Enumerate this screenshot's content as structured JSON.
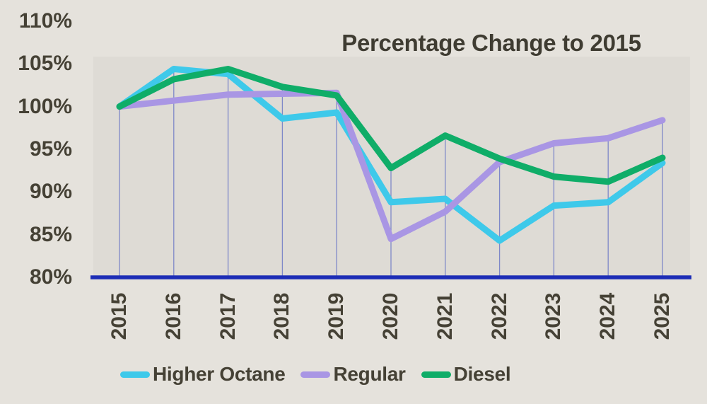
{
  "title": "Percentage Change to 2015",
  "colors": {
    "background": "#e5e2dc",
    "plot_background": "#dedbd5",
    "axis_line": "#1d2db6",
    "dropline": "#7e88c8",
    "text": "#454135",
    "higher_octane": "#3ec9ea",
    "regular": "#a996e4",
    "diesel": "#0fad68"
  },
  "y_axis": {
    "tick_labels": [
      "110%",
      "105%",
      "100%",
      "95%",
      "90%",
      "85%",
      "80%"
    ]
  },
  "x_axis": {
    "tick_labels": [
      "2015",
      "2016",
      "2017",
      "2018",
      "2019",
      "2020",
      "2021",
      "2022",
      "2023",
      "2024",
      "2025"
    ]
  },
  "legend": {
    "items": [
      {
        "label": "Higher Octane",
        "color": "#3ec9ea"
      },
      {
        "label": "Regular",
        "color": "#a996e4"
      },
      {
        "label": "Diesel",
        "color": "#0fad68"
      }
    ]
  },
  "chart_data": {
    "type": "line",
    "title": "Percentage Change to 2015",
    "x": [
      2015,
      2016,
      2017,
      2018,
      2019,
      2020,
      2021,
      2022,
      2023,
      2024,
      2025
    ],
    "series": [
      {
        "name": "Higher Octane",
        "color": "#3ec9ea",
        "values": [
          100,
          104.4,
          103.8,
          98.6,
          99.3,
          88.8,
          89.2,
          84.3,
          88.4,
          88.8,
          93.4
        ]
      },
      {
        "name": "Regular",
        "color": "#a996e4",
        "values": [
          100,
          100.7,
          101.4,
          101.5,
          101.6,
          84.5,
          87.7,
          93.5,
          95.7,
          96.3,
          98.4
        ]
      },
      {
        "name": "Diesel",
        "color": "#0fad68",
        "values": [
          100,
          103.2,
          104.4,
          102.3,
          101.3,
          92.8,
          96.6,
          93.9,
          91.8,
          91.2,
          94.0
        ]
      }
    ],
    "ylim": [
      80,
      110
    ],
    "y_tick_step": 5,
    "y_tick_format": "percent",
    "grid": "vertical droplines from top series to baseline",
    "legend_position": "bottom",
    "notes": "thick rounded lines; dark navy baseline at 80%"
  }
}
